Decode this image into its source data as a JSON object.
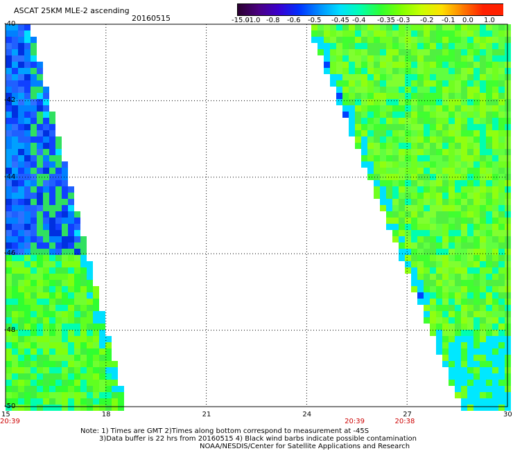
{
  "header": {
    "title": "ASCAT 25KM MLE-2 ascending",
    "date": "20160515"
  },
  "colorbar": {
    "labels": [
      "-15.0",
      "-1.0",
      "-0.8",
      "-0.6",
      "-0.5",
      "-0.45",
      "-0.4",
      "-0.35",
      "-0.3",
      "-0.2",
      "-0.1",
      "0.0",
      "1.0"
    ],
    "colors": [
      "#2a0030",
      "#4a0080",
      "#3a00d0",
      "#0030ff",
      "#0090ff",
      "#00e0ff",
      "#00ffb0",
      "#30ff30",
      "#80ff00",
      "#c8ff00",
      "#ffe000",
      "#ff8000",
      "#ff2000"
    ]
  },
  "map": {
    "lat_labels": [
      "-40",
      "-42",
      "-44",
      "-46",
      "-48",
      "-50"
    ],
    "lon_labels": [
      "15",
      "18",
      "21",
      "24",
      "27",
      "30"
    ],
    "lat_range": [
      -50,
      -40
    ],
    "lon_range": [
      15,
      30
    ],
    "times": [
      {
        "label": "20:39",
        "lon": 15
      },
      {
        "label": "20:39",
        "lon": 25.3
      },
      {
        "label": "20:38",
        "lon": 26.8
      }
    ]
  },
  "notes": {
    "line1": "Note: 1) Times are GMT 2)Times along bottom correspond to measurement at -45S",
    "line2": "3)Data buffer is 22 hrs from 20160515 4) Black wind barbs indicate possible contamination",
    "line3": "NOAA/NESDIS/Center for Satellite Applications and Research"
  }
}
